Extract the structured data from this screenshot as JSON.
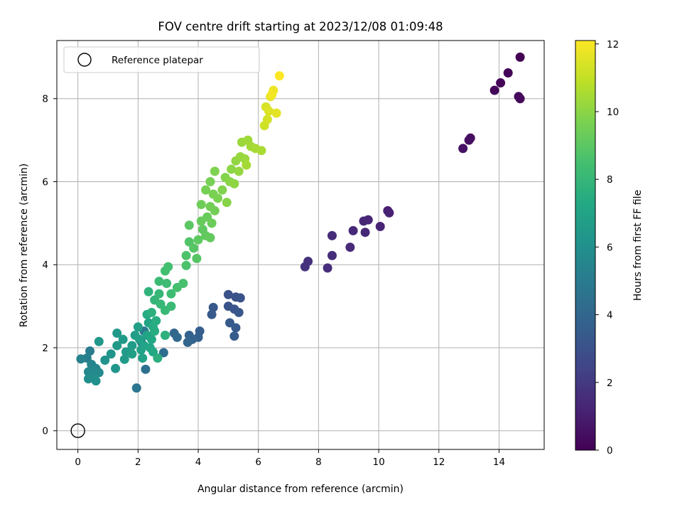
{
  "chart_data": {
    "type": "scatter",
    "title": "FOV centre drift starting at 2023/12/08 01:09:48",
    "xlabel": "Angular distance from reference (arcmin)",
    "ylabel": "Rotation from reference (arcmin)",
    "xlim": [
      -0.7,
      15.5
    ],
    "ylim": [
      -0.45,
      9.4
    ],
    "xticks": [
      0,
      2,
      4,
      6,
      8,
      10,
      12,
      14
    ],
    "yticks": [
      0,
      2,
      4,
      6,
      8
    ],
    "grid": true,
    "legend": {
      "placement": "top-left",
      "entries": [
        "Reference platepar"
      ]
    },
    "reference_point": {
      "x": 0,
      "y": 0,
      "marker": "hollow-circle"
    },
    "colorbar": {
      "label": "Hours from first FF file",
      "colormap": "viridis",
      "range": [
        0,
        12.1
      ],
      "ticks": [
        0,
        2,
        4,
        6,
        8,
        10,
        12
      ]
    },
    "points": [
      {
        "x": 14.7,
        "y": 9.0,
        "c": 0.0
      },
      {
        "x": 14.3,
        "y": 8.62,
        "c": 0.1
      },
      {
        "x": 14.05,
        "y": 8.38,
        "c": 0.15
      },
      {
        "x": 13.85,
        "y": 8.2,
        "c": 0.2
      },
      {
        "x": 14.65,
        "y": 8.05,
        "c": 0.25
      },
      {
        "x": 14.7,
        "y": 8.0,
        "c": 0.3
      },
      {
        "x": 13.05,
        "y": 7.05,
        "c": 0.45
      },
      {
        "x": 13.0,
        "y": 7.0,
        "c": 0.5
      },
      {
        "x": 12.8,
        "y": 6.8,
        "c": 0.55
      },
      {
        "x": 10.3,
        "y": 5.3,
        "c": 1.1
      },
      {
        "x": 10.35,
        "y": 5.25,
        "c": 1.15
      },
      {
        "x": 10.05,
        "y": 4.92,
        "c": 1.2
      },
      {
        "x": 9.65,
        "y": 5.08,
        "c": 1.25
      },
      {
        "x": 9.5,
        "y": 5.05,
        "c": 1.3
      },
      {
        "x": 9.55,
        "y": 4.78,
        "c": 1.35
      },
      {
        "x": 9.15,
        "y": 4.82,
        "c": 1.4
      },
      {
        "x": 9.05,
        "y": 4.42,
        "c": 1.45
      },
      {
        "x": 8.45,
        "y": 4.7,
        "c": 1.5
      },
      {
        "x": 8.45,
        "y": 4.22,
        "c": 1.55
      },
      {
        "x": 8.3,
        "y": 3.92,
        "c": 1.6
      },
      {
        "x": 7.65,
        "y": 4.08,
        "c": 1.7
      },
      {
        "x": 7.55,
        "y": 3.95,
        "c": 1.75
      },
      {
        "x": 5.0,
        "y": 3.28,
        "c": 3.0
      },
      {
        "x": 5.25,
        "y": 3.22,
        "c": 3.05
      },
      {
        "x": 5.4,
        "y": 3.2,
        "c": 3.1
      },
      {
        "x": 5.0,
        "y": 3.0,
        "c": 3.15
      },
      {
        "x": 5.2,
        "y": 2.93,
        "c": 3.2
      },
      {
        "x": 5.35,
        "y": 2.85,
        "c": 3.25
      },
      {
        "x": 4.5,
        "y": 2.97,
        "c": 3.3
      },
      {
        "x": 4.45,
        "y": 2.8,
        "c": 3.35
      },
      {
        "x": 5.05,
        "y": 2.6,
        "c": 3.4
      },
      {
        "x": 5.25,
        "y": 2.48,
        "c": 3.45
      },
      {
        "x": 5.2,
        "y": 2.28,
        "c": 3.5
      },
      {
        "x": 4.05,
        "y": 2.4,
        "c": 3.6
      },
      {
        "x": 4.0,
        "y": 2.25,
        "c": 3.7
      },
      {
        "x": 3.7,
        "y": 2.3,
        "c": 3.8
      },
      {
        "x": 3.8,
        "y": 2.2,
        "c": 3.85
      },
      {
        "x": 3.65,
        "y": 2.13,
        "c": 3.9
      },
      {
        "x": 3.2,
        "y": 2.35,
        "c": 4.0
      },
      {
        "x": 3.3,
        "y": 2.25,
        "c": 4.1
      },
      {
        "x": 2.85,
        "y": 1.88,
        "c": 4.3
      },
      {
        "x": 2.25,
        "y": 1.48,
        "c": 4.5
      },
      {
        "x": 1.95,
        "y": 1.03,
        "c": 4.7
      },
      {
        "x": 2.1,
        "y": 2.15,
        "c": 4.8
      },
      {
        "x": 2.2,
        "y": 2.4,
        "c": 4.9
      },
      {
        "x": 0.4,
        "y": 1.92,
        "c": 5.0
      },
      {
        "x": 0.3,
        "y": 1.75,
        "c": 5.2
      },
      {
        "x": 0.1,
        "y": 1.73,
        "c": 5.3
      },
      {
        "x": 0.45,
        "y": 1.6,
        "c": 5.4
      },
      {
        "x": 0.6,
        "y": 1.5,
        "c": 5.5
      },
      {
        "x": 0.35,
        "y": 1.42,
        "c": 5.6
      },
      {
        "x": 0.7,
        "y": 1.4,
        "c": 5.7
      },
      {
        "x": 0.5,
        "y": 1.3,
        "c": 5.8
      },
      {
        "x": 0.35,
        "y": 1.25,
        "c": 5.9
      },
      {
        "x": 0.6,
        "y": 1.2,
        "c": 6.0
      },
      {
        "x": 0.9,
        "y": 1.7,
        "c": 6.1
      },
      {
        "x": 1.1,
        "y": 1.85,
        "c": 6.2
      },
      {
        "x": 1.25,
        "y": 1.5,
        "c": 6.3
      },
      {
        "x": 0.7,
        "y": 2.15,
        "c": 6.35
      },
      {
        "x": 1.3,
        "y": 2.35,
        "c": 6.4
      },
      {
        "x": 1.3,
        "y": 2.05,
        "c": 6.45
      },
      {
        "x": 1.5,
        "y": 2.2,
        "c": 6.5
      },
      {
        "x": 1.6,
        "y": 1.9,
        "c": 6.55
      },
      {
        "x": 1.55,
        "y": 1.72,
        "c": 6.6
      },
      {
        "x": 1.8,
        "y": 2.05,
        "c": 6.65
      },
      {
        "x": 1.9,
        "y": 2.3,
        "c": 6.7
      },
      {
        "x": 1.8,
        "y": 1.85,
        "c": 6.75
      },
      {
        "x": 2.0,
        "y": 2.5,
        "c": 6.8
      },
      {
        "x": 2.05,
        "y": 2.2,
        "c": 6.85
      },
      {
        "x": 2.1,
        "y": 1.95,
        "c": 6.9
      },
      {
        "x": 2.2,
        "y": 2.05,
        "c": 6.95
      },
      {
        "x": 2.15,
        "y": 1.75,
        "c": 7.0
      },
      {
        "x": 2.3,
        "y": 2.3,
        "c": 7.05
      },
      {
        "x": 2.35,
        "y": 2.6,
        "c": 7.1
      },
      {
        "x": 2.4,
        "y": 2.0,
        "c": 7.15
      },
      {
        "x": 2.45,
        "y": 2.2,
        "c": 7.2
      },
      {
        "x": 2.5,
        "y": 1.9,
        "c": 7.3
      },
      {
        "x": 2.5,
        "y": 2.5,
        "c": 7.35
      },
      {
        "x": 2.3,
        "y": 2.8,
        "c": 7.4
      },
      {
        "x": 2.55,
        "y": 2.4,
        "c": 7.45
      },
      {
        "x": 2.6,
        "y": 2.65,
        "c": 7.5
      },
      {
        "x": 2.65,
        "y": 1.75,
        "c": 7.6
      },
      {
        "x": 2.45,
        "y": 2.85,
        "c": 7.65
      },
      {
        "x": 2.9,
        "y": 2.3,
        "c": 7.7
      },
      {
        "x": 2.35,
        "y": 3.35,
        "c": 7.8
      },
      {
        "x": 2.55,
        "y": 3.15,
        "c": 7.9
      },
      {
        "x": 2.7,
        "y": 3.3,
        "c": 8.0
      },
      {
        "x": 2.75,
        "y": 3.05,
        "c": 8.05
      },
      {
        "x": 2.9,
        "y": 2.9,
        "c": 8.1
      },
      {
        "x": 3.1,
        "y": 3.0,
        "c": 8.15
      },
      {
        "x": 2.7,
        "y": 3.6,
        "c": 8.2
      },
      {
        "x": 2.95,
        "y": 3.55,
        "c": 8.25
      },
      {
        "x": 3.1,
        "y": 3.3,
        "c": 8.3
      },
      {
        "x": 2.9,
        "y": 3.85,
        "c": 8.4
      },
      {
        "x": 3.0,
        "y": 3.95,
        "c": 8.45
      },
      {
        "x": 3.3,
        "y": 3.45,
        "c": 8.5
      },
      {
        "x": 3.5,
        "y": 3.55,
        "c": 8.55
      },
      {
        "x": 3.6,
        "y": 3.98,
        "c": 8.6
      },
      {
        "x": 3.6,
        "y": 4.22,
        "c": 8.7
      },
      {
        "x": 3.7,
        "y": 4.55,
        "c": 8.8
      },
      {
        "x": 3.85,
        "y": 4.4,
        "c": 8.85
      },
      {
        "x": 3.95,
        "y": 4.15,
        "c": 8.9
      },
      {
        "x": 3.7,
        "y": 4.95,
        "c": 9.0
      },
      {
        "x": 4.0,
        "y": 4.6,
        "c": 9.05
      },
      {
        "x": 4.15,
        "y": 4.85,
        "c": 9.1
      },
      {
        "x": 4.25,
        "y": 4.7,
        "c": 9.15
      },
      {
        "x": 4.4,
        "y": 4.65,
        "c": 9.2
      },
      {
        "x": 4.1,
        "y": 5.05,
        "c": 9.25
      },
      {
        "x": 4.3,
        "y": 5.15,
        "c": 9.3
      },
      {
        "x": 4.45,
        "y": 5.0,
        "c": 9.35
      },
      {
        "x": 4.1,
        "y": 5.45,
        "c": 9.4
      },
      {
        "x": 4.4,
        "y": 5.4,
        "c": 9.45
      },
      {
        "x": 4.55,
        "y": 5.3,
        "c": 9.5
      },
      {
        "x": 4.25,
        "y": 5.8,
        "c": 9.55
      },
      {
        "x": 4.4,
        "y": 6.0,
        "c": 9.6
      },
      {
        "x": 4.5,
        "y": 5.7,
        "c": 9.65
      },
      {
        "x": 4.65,
        "y": 5.6,
        "c": 9.7
      },
      {
        "x": 4.55,
        "y": 6.25,
        "c": 9.75
      },
      {
        "x": 4.8,
        "y": 5.8,
        "c": 9.8
      },
      {
        "x": 4.9,
        "y": 6.1,
        "c": 9.85
      },
      {
        "x": 4.95,
        "y": 5.5,
        "c": 9.9
      },
      {
        "x": 5.05,
        "y": 6.0,
        "c": 9.95
      },
      {
        "x": 5.1,
        "y": 6.3,
        "c": 10.0
      },
      {
        "x": 5.2,
        "y": 5.95,
        "c": 10.05
      },
      {
        "x": 5.25,
        "y": 6.5,
        "c": 10.1
      },
      {
        "x": 5.35,
        "y": 6.25,
        "c": 10.15
      },
      {
        "x": 5.4,
        "y": 6.6,
        "c": 10.2
      },
      {
        "x": 5.55,
        "y": 6.55,
        "c": 10.25
      },
      {
        "x": 5.45,
        "y": 6.95,
        "c": 10.3
      },
      {
        "x": 5.65,
        "y": 7.0,
        "c": 10.35
      },
      {
        "x": 5.75,
        "y": 6.85,
        "c": 10.4
      },
      {
        "x": 5.6,
        "y": 6.4,
        "c": 10.45
      },
      {
        "x": 5.9,
        "y": 6.8,
        "c": 10.5
      },
      {
        "x": 6.1,
        "y": 6.75,
        "c": 10.55
      },
      {
        "x": 6.2,
        "y": 7.35,
        "c": 11.2
      },
      {
        "x": 6.3,
        "y": 7.5,
        "c": 11.3
      },
      {
        "x": 6.25,
        "y": 7.8,
        "c": 11.4
      },
      {
        "x": 6.35,
        "y": 7.7,
        "c": 11.5
      },
      {
        "x": 6.6,
        "y": 7.65,
        "c": 11.6
      },
      {
        "x": 6.4,
        "y": 8.05,
        "c": 11.7
      },
      {
        "x": 6.5,
        "y": 8.2,
        "c": 11.8
      },
      {
        "x": 6.45,
        "y": 8.1,
        "c": 11.9
      },
      {
        "x": 6.7,
        "y": 8.55,
        "c": 12.1
      }
    ]
  }
}
